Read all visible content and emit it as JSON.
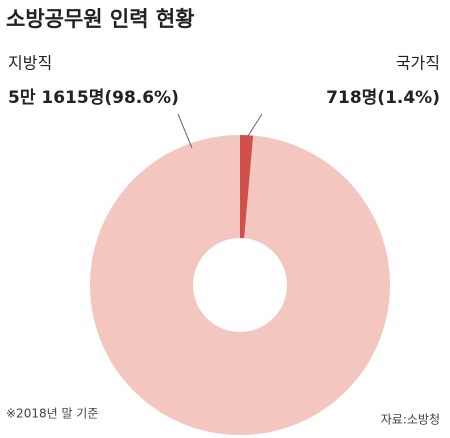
{
  "chart_data": {
    "type": "pie",
    "title": "소방공무원 인력 현황",
    "categories": [
      "지방직",
      "국가직"
    ],
    "values": [
      98.6,
      1.4
    ],
    "value_labels": [
      "5만 1615명(98.6%)",
      "718명(1.4%)"
    ],
    "colors": [
      "#f3c6c0",
      "#d2504a"
    ],
    "donut": true,
    "footnote": "※2018년 말 기준",
    "source": "자료:소방청"
  }
}
